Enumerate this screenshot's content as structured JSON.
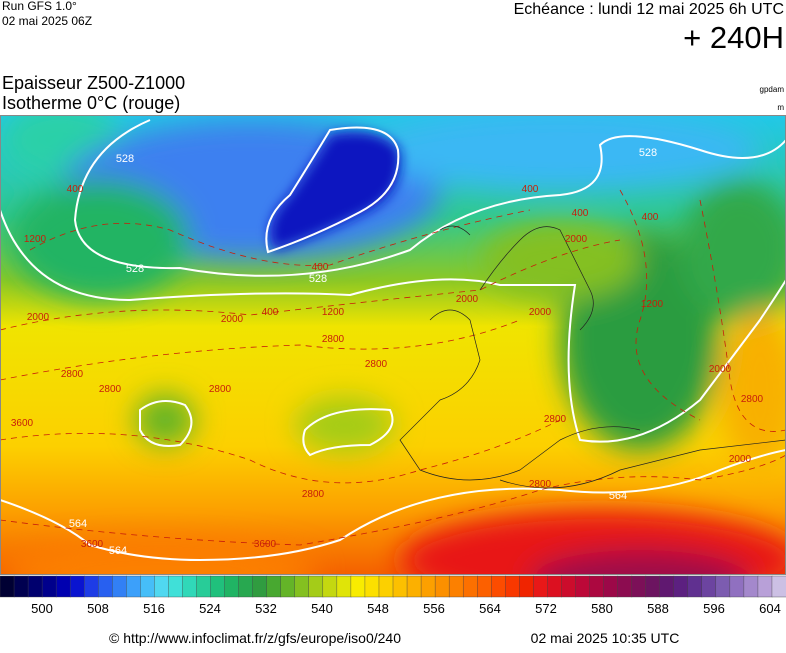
{
  "header": {
    "run": "Run GFS 1.0°",
    "date": "02 mai 2025 06Z",
    "echeance": "Echéance : lundi 12 mai 2025 6h UTC",
    "lead": "+ 240H"
  },
  "title": {
    "line1": "Epaisseur Z500-Z1000",
    "line2": "Isotherme 0°C (rouge)"
  },
  "units": {
    "thickness": "gpdam",
    "isotherm": "m"
  },
  "map": {
    "thickness_labels": [
      528,
      528,
      528,
      528,
      564,
      564,
      564
    ],
    "isotherm_labels": [
      400,
      1200,
      2000,
      2800,
      3600,
      2800,
      2800,
      2000,
      2800,
      2800,
      400,
      1200,
      400,
      2000,
      2000,
      400,
      400,
      2000,
      400,
      1200,
      2000,
      2800,
      2800,
      3600,
      3600,
      2800,
      2000,
      2800
    ]
  },
  "colorbar": {
    "colors": [
      "#000033",
      "#000050",
      "#00006e",
      "#00008c",
      "#0000b0",
      "#0a14d0",
      "#1e3ce6",
      "#2860f0",
      "#3280f5",
      "#3ca0fa",
      "#46bef8",
      "#50d8f0",
      "#40e0d8",
      "#30d8b8",
      "#28cc98",
      "#20c07c",
      "#20b464",
      "#28a850",
      "#309c40",
      "#48a830",
      "#64b428",
      "#84c020",
      "#a4cc18",
      "#c4d810",
      "#e0e408",
      "#f8ec00",
      "#fce000",
      "#fcd000",
      "#fcc000",
      "#fcb000",
      "#fca000",
      "#fc9000",
      "#fc8000",
      "#fc7000",
      "#fc6000",
      "#fc4c00",
      "#f83800",
      "#f02400",
      "#e81818",
      "#dc1020",
      "#cc0c2c",
      "#bc0838",
      "#ac0840",
      "#9c0848",
      "#8c0c50",
      "#7c1058",
      "#6c1460",
      "#601870",
      "#5c2080",
      "#603090",
      "#6c44a0",
      "#7c5cb0",
      "#9070c0",
      "#a488cc",
      "#b8a0d8",
      "#ccc0e4"
    ],
    "ticks": [
      500,
      508,
      516,
      524,
      532,
      540,
      548,
      556,
      564,
      572,
      580,
      588,
      596,
      604
    ]
  },
  "footer": {
    "source": "© http://www.infoclimat.fr/z/gfs/europe/iso0/240",
    "generated": "02 mai 2025 10:35 UTC"
  }
}
